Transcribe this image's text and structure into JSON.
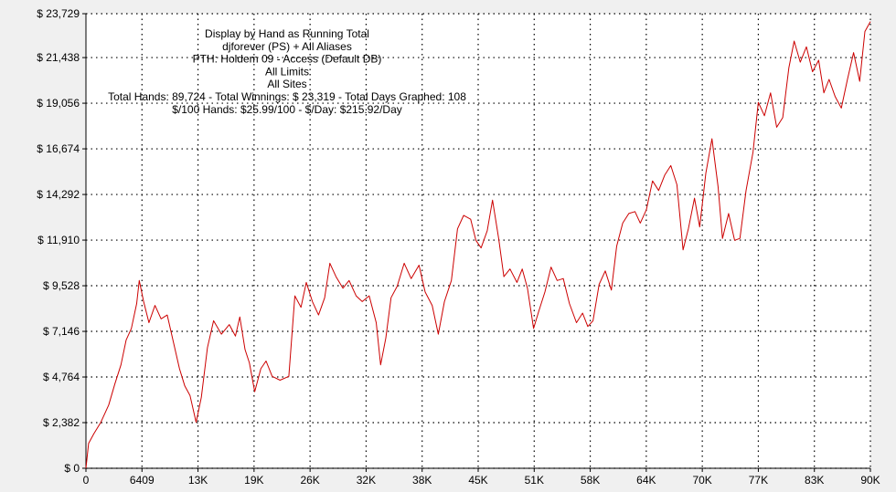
{
  "chart_data": {
    "type": "line",
    "title_lines": [
      "Display by Hand as Running Total",
      "djforever (PS) + All Aliases",
      "PTH: Holdem 09 - Access (Default DB)",
      "All Limits",
      "All Sites",
      "Total Hands: 89,724 - Total Winnings: $ 23,319 - Total Days Graphed: 108",
      "$/100 Hands: $25.99/100 - $/Day: $215.92/Day"
    ],
    "xlim": [
      0,
      89724
    ],
    "ylim": [
      0,
      23729
    ],
    "x_ticks": [
      {
        "value": 0,
        "label": "0"
      },
      {
        "value": 6409,
        "label": "6409"
      },
      {
        "value": 12818,
        "label": "13K"
      },
      {
        "value": 19227,
        "label": "19K"
      },
      {
        "value": 25636,
        "label": "26K"
      },
      {
        "value": 32045,
        "label": "32K"
      },
      {
        "value": 38454,
        "label": "38K"
      },
      {
        "value": 44862,
        "label": "45K"
      },
      {
        "value": 51271,
        "label": "51K"
      },
      {
        "value": 57680,
        "label": "58K"
      },
      {
        "value": 64089,
        "label": "64K"
      },
      {
        "value": 70498,
        "label": "70K"
      },
      {
        "value": 76907,
        "label": "77K"
      },
      {
        "value": 83316,
        "label": "83K"
      },
      {
        "value": 89724,
        "label": "90K"
      }
    ],
    "y_ticks": [
      {
        "value": 0,
        "label": "$ 0"
      },
      {
        "value": 2382,
        "label": "$ 2,382"
      },
      {
        "value": 4764,
        "label": "$ 4,764"
      },
      {
        "value": 7146,
        "label": "$ 7,146"
      },
      {
        "value": 9528,
        "label": "$ 9,528"
      },
      {
        "value": 11910,
        "label": "$ 11,910"
      },
      {
        "value": 14292,
        "label": "$ 14,292"
      },
      {
        "value": 16674,
        "label": "$ 16,674"
      },
      {
        "value": 19056,
        "label": "$ 19,056"
      },
      {
        "value": 21438,
        "label": "$ 21,438"
      },
      {
        "value": 23729,
        "label": "$ 23,729"
      }
    ],
    "grid": true,
    "line_color": "#cc0000",
    "series": [
      {
        "values": [
          [
            0,
            0
          ],
          [
            300,
            1300
          ],
          [
            900,
            1800
          ],
          [
            1700,
            2400
          ],
          [
            2600,
            3300
          ],
          [
            3300,
            4400
          ],
          [
            4000,
            5400
          ],
          [
            4600,
            6700
          ],
          [
            5200,
            7300
          ],
          [
            5800,
            8600
          ],
          [
            6100,
            9800
          ],
          [
            6600,
            8700
          ],
          [
            7200,
            7600
          ],
          [
            7900,
            8500
          ],
          [
            8600,
            7800
          ],
          [
            9300,
            8000
          ],
          [
            10000,
            6600
          ],
          [
            10700,
            5200
          ],
          [
            11300,
            4300
          ],
          [
            11900,
            3800
          ],
          [
            12600,
            2400
          ],
          [
            13200,
            3700
          ],
          [
            13900,
            6300
          ],
          [
            14600,
            7700
          ],
          [
            15500,
            7000
          ],
          [
            16400,
            7500
          ],
          [
            17100,
            6900
          ],
          [
            17600,
            7900
          ],
          [
            18200,
            6200
          ],
          [
            18700,
            5500
          ],
          [
            19300,
            4000
          ],
          [
            20000,
            5200
          ],
          [
            20600,
            5600
          ],
          [
            21300,
            4800
          ],
          [
            22200,
            4600
          ],
          [
            23200,
            4800
          ],
          [
            23900,
            9000
          ],
          [
            24600,
            8400
          ],
          [
            25200,
            9700
          ],
          [
            25900,
            8700
          ],
          [
            26600,
            8000
          ],
          [
            27300,
            8900
          ],
          [
            27900,
            10700
          ],
          [
            28600,
            10000
          ],
          [
            29400,
            9400
          ],
          [
            30100,
            9800
          ],
          [
            30900,
            9000
          ],
          [
            31600,
            8700
          ],
          [
            32400,
            9000
          ],
          [
            33200,
            7600
          ],
          [
            33700,
            5400
          ],
          [
            34300,
            6800
          ],
          [
            34900,
            8900
          ],
          [
            35600,
            9500
          ],
          [
            36400,
            10700
          ],
          [
            37200,
            9900
          ],
          [
            38100,
            10600
          ],
          [
            38800,
            9200
          ],
          [
            39600,
            8500
          ],
          [
            40300,
            7000
          ],
          [
            41000,
            8700
          ],
          [
            41800,
            9800
          ],
          [
            42500,
            12500
          ],
          [
            43200,
            13200
          ],
          [
            44000,
            13000
          ],
          [
            44600,
            11900
          ],
          [
            45200,
            11500
          ],
          [
            45900,
            12400
          ],
          [
            46500,
            14000
          ],
          [
            47200,
            12000
          ],
          [
            47800,
            10000
          ],
          [
            48500,
            10400
          ],
          [
            49300,
            9700
          ],
          [
            49900,
            10400
          ],
          [
            50500,
            9400
          ],
          [
            51200,
            7300
          ],
          [
            51800,
            8200
          ],
          [
            52500,
            9200
          ],
          [
            53200,
            10500
          ],
          [
            53900,
            9800
          ],
          [
            54600,
            9900
          ],
          [
            55300,
            8600
          ],
          [
            56100,
            7600
          ],
          [
            56800,
            8100
          ],
          [
            57400,
            7400
          ],
          [
            58000,
            7700
          ],
          [
            58700,
            9600
          ],
          [
            59400,
            10300
          ],
          [
            60100,
            9300
          ],
          [
            60700,
            11600
          ],
          [
            61400,
            12800
          ],
          [
            62100,
            13300
          ],
          [
            62800,
            13400
          ],
          [
            63400,
            12800
          ],
          [
            64100,
            13500
          ],
          [
            64800,
            15000
          ],
          [
            65500,
            14500
          ],
          [
            66200,
            15300
          ],
          [
            66900,
            15800
          ],
          [
            67600,
            14800
          ],
          [
            68300,
            11400
          ],
          [
            68900,
            12500
          ],
          [
            69600,
            14100
          ],
          [
            70200,
            12600
          ],
          [
            70900,
            15400
          ],
          [
            71600,
            17200
          ],
          [
            72300,
            14700
          ],
          [
            72800,
            12000
          ],
          [
            73500,
            13300
          ],
          [
            74200,
            11900
          ],
          [
            74800,
            12000
          ],
          [
            75500,
            14500
          ],
          [
            76300,
            16500
          ],
          [
            76900,
            19100
          ],
          [
            77600,
            18400
          ],
          [
            78300,
            19600
          ],
          [
            79000,
            17800
          ],
          [
            79700,
            18300
          ],
          [
            80400,
            20900
          ],
          [
            81000,
            22300
          ],
          [
            81700,
            21200
          ],
          [
            82400,
            22000
          ],
          [
            83100,
            20700
          ],
          [
            83800,
            21300
          ],
          [
            84400,
            19600
          ],
          [
            85000,
            20300
          ],
          [
            85700,
            19400
          ],
          [
            86400,
            18800
          ],
          [
            87100,
            20300
          ],
          [
            87800,
            21700
          ],
          [
            88500,
            20200
          ],
          [
            89100,
            22800
          ],
          [
            89724,
            23319
          ]
        ]
      }
    ]
  }
}
